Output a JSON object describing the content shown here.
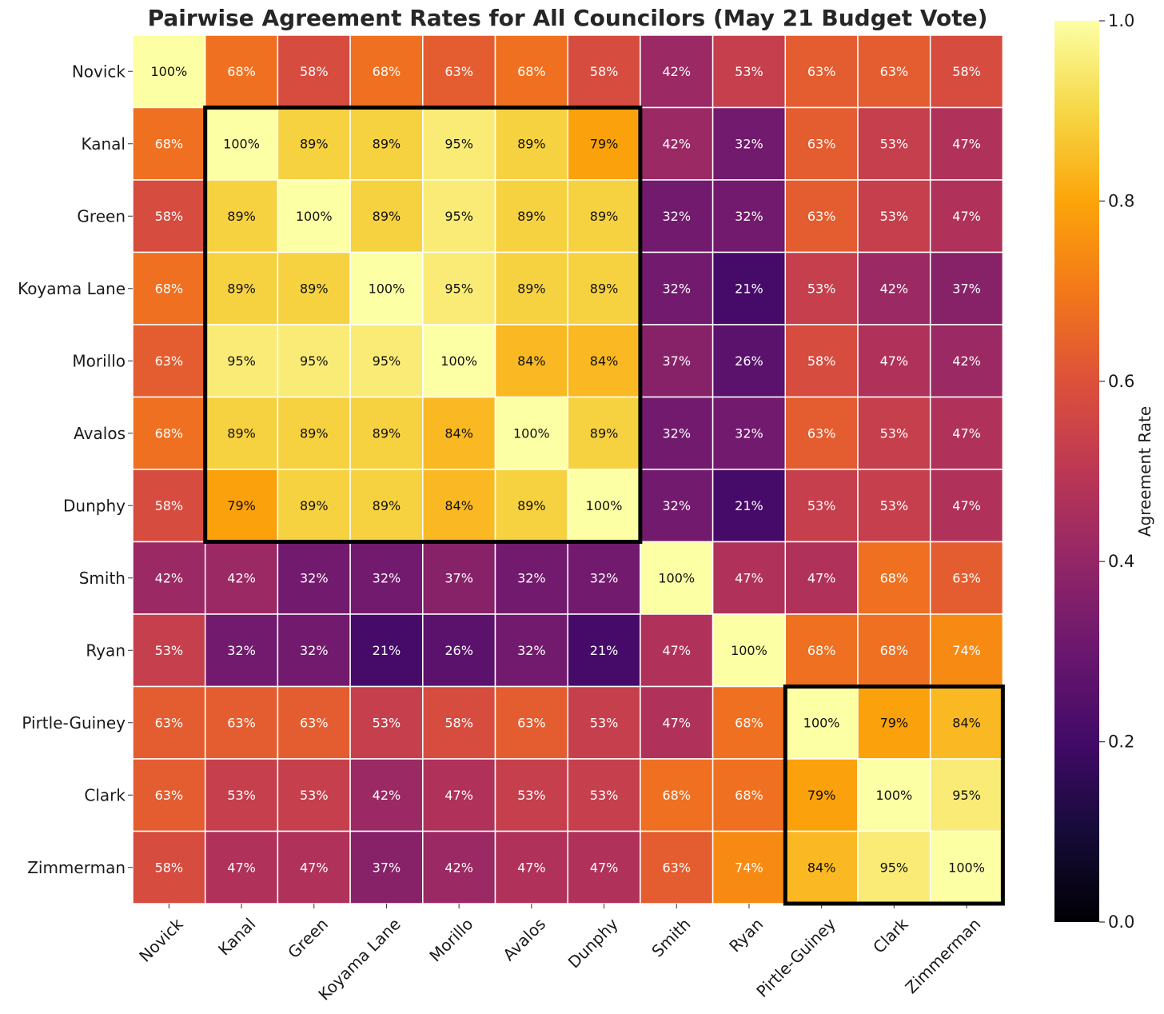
{
  "chart_data": {
    "type": "heatmap",
    "title": "Pairwise Agreement Rates for All Councilors (May 21 Budget Vote)",
    "colormap": "inferno",
    "rows": [
      "Novick",
      "Kanal",
      "Green",
      "Koyama Lane",
      "Morillo",
      "Avalos",
      "Dunphy",
      "Smith",
      "Ryan",
      "Pirtle-Guiney",
      "Clark",
      "Zimmerman"
    ],
    "columns": [
      "Novick",
      "Kanal",
      "Green",
      "Koyama Lane",
      "Morillo",
      "Avalos",
      "Dunphy",
      "Smith",
      "Ryan",
      "Pirtle-Guiney",
      "Clark",
      "Zimmerman"
    ],
    "values": [
      [
        1.0,
        0.68,
        0.58,
        0.68,
        0.63,
        0.68,
        0.58,
        0.42,
        0.53,
        0.63,
        0.63,
        0.58
      ],
      [
        0.68,
        1.0,
        0.89,
        0.89,
        0.95,
        0.89,
        0.79,
        0.42,
        0.32,
        0.63,
        0.53,
        0.47
      ],
      [
        0.58,
        0.89,
        1.0,
        0.89,
        0.95,
        0.89,
        0.89,
        0.32,
        0.32,
        0.63,
        0.53,
        0.47
      ],
      [
        0.68,
        0.89,
        0.89,
        1.0,
        0.95,
        0.89,
        0.89,
        0.32,
        0.21,
        0.53,
        0.42,
        0.37
      ],
      [
        0.63,
        0.95,
        0.95,
        0.95,
        1.0,
        0.84,
        0.84,
        0.37,
        0.26,
        0.58,
        0.47,
        0.42
      ],
      [
        0.68,
        0.89,
        0.89,
        0.89,
        0.84,
        1.0,
        0.89,
        0.32,
        0.32,
        0.63,
        0.53,
        0.47
      ],
      [
        0.58,
        0.79,
        0.89,
        0.89,
        0.84,
        0.89,
        1.0,
        0.32,
        0.21,
        0.53,
        0.53,
        0.47
      ],
      [
        0.42,
        0.42,
        0.32,
        0.32,
        0.37,
        0.32,
        0.32,
        1.0,
        0.47,
        0.47,
        0.68,
        0.63
      ],
      [
        0.53,
        0.32,
        0.32,
        0.21,
        0.26,
        0.32,
        0.21,
        0.47,
        1.0,
        0.68,
        0.68,
        0.74
      ],
      [
        0.63,
        0.63,
        0.63,
        0.53,
        0.58,
        0.63,
        0.53,
        0.47,
        0.68,
        1.0,
        0.79,
        0.84
      ],
      [
        0.63,
        0.53,
        0.53,
        0.42,
        0.47,
        0.53,
        0.53,
        0.68,
        0.68,
        0.79,
        1.0,
        0.95
      ],
      [
        0.58,
        0.47,
        0.47,
        0.37,
        0.42,
        0.47,
        0.47,
        0.63,
        0.74,
        0.84,
        0.95,
        1.0
      ]
    ],
    "cell_labels": [
      [
        "100%",
        "68%",
        "58%",
        "68%",
        "63%",
        "68%",
        "58%",
        "42%",
        "53%",
        "63%",
        "63%",
        "58%"
      ],
      [
        "68%",
        "100%",
        "89%",
        "89%",
        "95%",
        "89%",
        "79%",
        "42%",
        "32%",
        "63%",
        "53%",
        "47%"
      ],
      [
        "58%",
        "89%",
        "100%",
        "89%",
        "95%",
        "89%",
        "89%",
        "32%",
        "32%",
        "63%",
        "53%",
        "47%"
      ],
      [
        "68%",
        "89%",
        "89%",
        "100%",
        "95%",
        "89%",
        "89%",
        "32%",
        "21%",
        "53%",
        "42%",
        "37%"
      ],
      [
        "63%",
        "95%",
        "95%",
        "95%",
        "100%",
        "84%",
        "84%",
        "37%",
        "26%",
        "58%",
        "47%",
        "42%"
      ],
      [
        "68%",
        "89%",
        "89%",
        "89%",
        "84%",
        "100%",
        "89%",
        "32%",
        "32%",
        "63%",
        "53%",
        "47%"
      ],
      [
        "58%",
        "79%",
        "89%",
        "89%",
        "84%",
        "89%",
        "100%",
        "32%",
        "21%",
        "53%",
        "53%",
        "47%"
      ],
      [
        "42%",
        "42%",
        "32%",
        "32%",
        "37%",
        "32%",
        "32%",
        "100%",
        "47%",
        "47%",
        "68%",
        "63%"
      ],
      [
        "53%",
        "32%",
        "32%",
        "21%",
        "26%",
        "32%",
        "21%",
        "47%",
        "100%",
        "68%",
        "68%",
        "74%"
      ],
      [
        "63%",
        "63%",
        "63%",
        "53%",
        "58%",
        "63%",
        "53%",
        "47%",
        "68%",
        "100%",
        "79%",
        "84%"
      ],
      [
        "63%",
        "53%",
        "53%",
        "42%",
        "47%",
        "53%",
        "53%",
        "68%",
        "68%",
        "79%",
        "100%",
        "95%"
      ],
      [
        "58%",
        "47%",
        "47%",
        "37%",
        "42%",
        "47%",
        "47%",
        "63%",
        "74%",
        "84%",
        "95%",
        "100%"
      ]
    ],
    "highlight_blocks": [
      {
        "start": 1,
        "end": 6
      },
      {
        "start": 9,
        "end": 11
      }
    ],
    "colorbar": {
      "label": "Agreement Rate",
      "range": [
        0.0,
        1.0
      ],
      "ticks": [
        "0.0",
        "0.2",
        "0.4",
        "0.6",
        "0.8",
        "1.0"
      ]
    }
  }
}
